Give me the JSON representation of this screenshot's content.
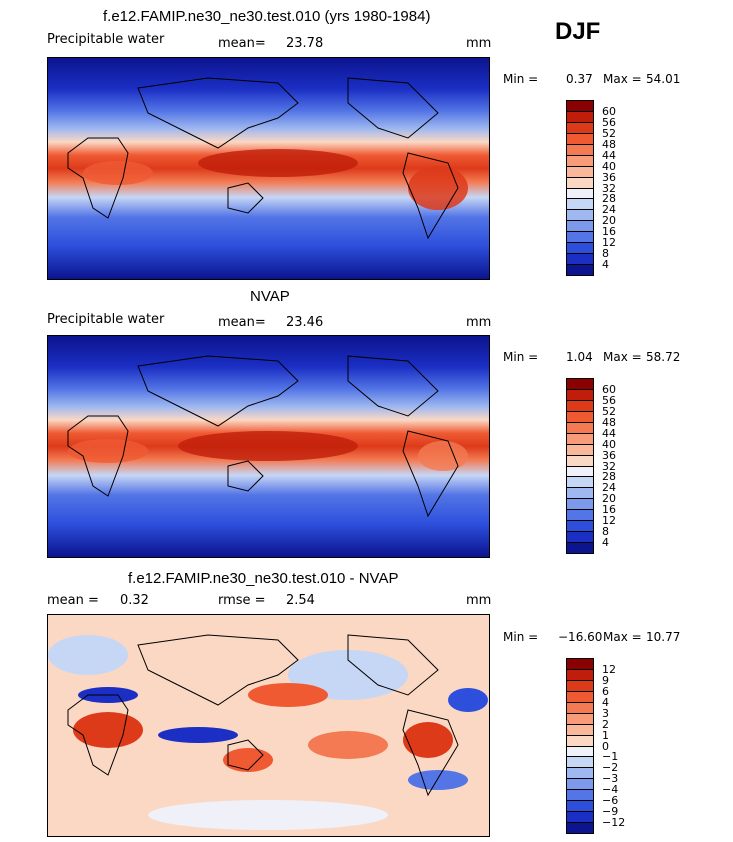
{
  "season": "DJF",
  "panels": [
    {
      "title": "f.e12.FAMIP.ne30_ne30.test.010 (yrs 1980-1984)",
      "left_label": "Precipitable water",
      "mean_label": "mean=",
      "mean_value": "23.78",
      "units": "mm",
      "min_label": "Min =",
      "min_value": "0.37",
      "max_label": "Max =",
      "max_value": "54.01",
      "colorbar": {
        "labels": [
          "60",
          "56",
          "52",
          "48",
          "44",
          "40",
          "36",
          "32",
          "28",
          "24",
          "20",
          "16",
          "12",
          "8",
          "4"
        ],
        "colors": [
          "#8b0000",
          "#c01e0a",
          "#dd3a1a",
          "#ef5a33",
          "#f37a52",
          "#f79b78",
          "#f9b89a",
          "#fbd8c4",
          "#f0f0f8",
          "#c6d6f5",
          "#9fb8f0",
          "#7d99ec",
          "#5375e6",
          "#2d4fdc",
          "#1b2fc4",
          "#0c148f"
        ]
      }
    },
    {
      "title": "NVAP",
      "left_label": "Precipitable water",
      "mean_label": "mean=",
      "mean_value": "23.46",
      "units": "mm",
      "min_label": "Min =",
      "min_value": "1.04",
      "max_label": "Max =",
      "max_value": "58.72",
      "colorbar": {
        "labels": [
          "60",
          "56",
          "52",
          "48",
          "44",
          "40",
          "36",
          "32",
          "28",
          "24",
          "20",
          "16",
          "12",
          "8",
          "4"
        ],
        "colors": [
          "#8b0000",
          "#c01e0a",
          "#dd3a1a",
          "#ef5a33",
          "#f37a52",
          "#f79b78",
          "#f9b89a",
          "#fbd8c4",
          "#f0f0f8",
          "#c6d6f5",
          "#9fb8f0",
          "#7d99ec",
          "#5375e6",
          "#2d4fdc",
          "#1b2fc4",
          "#0c148f"
        ]
      }
    },
    {
      "title": "f.e12.FAMIP.ne30_ne30.test.010 - NVAP",
      "mean_label": "mean =",
      "mean_value": "0.32",
      "rmse_label": "rmse =",
      "rmse_value": "2.54",
      "units": "mm",
      "min_label": "Min =",
      "min_value": "−16.60",
      "max_label": "Max =",
      "max_value": "10.77",
      "colorbar": {
        "labels": [
          "12",
          "9",
          "6",
          "4",
          "3",
          "2",
          "1",
          "0",
          "−1",
          "−2",
          "−3",
          "−4",
          "−6",
          "−9",
          "−12"
        ],
        "colors": [
          "#8b0000",
          "#c01e0a",
          "#dd3a1a",
          "#ef5a33",
          "#f37a52",
          "#f79b78",
          "#f9b89a",
          "#fbd8c4",
          "#f0f0f8",
          "#c6d6f5",
          "#9fb8f0",
          "#7d99ec",
          "#5375e6",
          "#2d4fdc",
          "#1b2fc4",
          "#0c148f"
        ]
      }
    }
  ]
}
